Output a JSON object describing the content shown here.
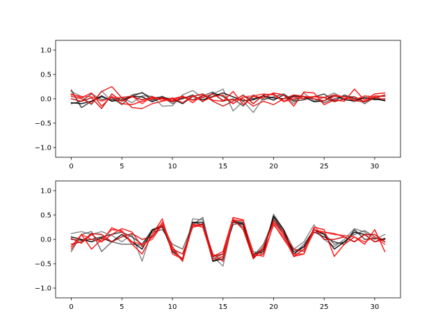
{
  "chart_data": [
    {
      "type": "line",
      "title": "",
      "xlabel": "",
      "ylabel": "",
      "xlim": [
        -1.55,
        32.55
      ],
      "ylim": [
        -1.2,
        1.2
      ],
      "xticks": [
        0,
        5,
        10,
        15,
        20,
        25,
        30
      ],
      "yticks": [
        -1.0,
        -0.5,
        0.0,
        0.5,
        1.0
      ],
      "xtick_labels": [
        "0",
        "5",
        "10",
        "15",
        "20",
        "25",
        "30"
      ],
      "ytick_labels": [
        "−1.0",
        "−0.5",
        "0.0",
        "0.5",
        "1.0"
      ],
      "grid": false,
      "x": [
        0,
        1,
        2,
        3,
        4,
        5,
        6,
        7,
        8,
        9,
        10,
        11,
        12,
        13,
        14,
        15,
        16,
        17,
        18,
        19,
        20,
        21,
        22,
        23,
        24,
        25,
        26,
        27,
        28,
        29,
        30,
        31
      ],
      "series": [
        {
          "color": "#808080",
          "values": [
            0.15,
            0.05,
            -0.12,
            0.16,
            -0.05,
            0.02,
            -0.08,
            0.06,
            0.05,
            -0.15,
            -0.14,
            0.08,
            0.17,
            0.02,
            0.1,
            0.2,
            -0.25,
            -0.05,
            -0.28,
            0.02,
            -0.02,
            0.08,
            -0.1,
            0.12,
            -0.05,
            0.03,
            0.12,
            0.0,
            -0.06,
            0.05,
            0.03,
            0.06
          ]
        },
        {
          "color": "#505050",
          "values": [
            -0.1,
            -0.05,
            0.1,
            -0.02,
            0.02,
            -0.12,
            0.08,
            0.12,
            0.02,
            0.04,
            -0.1,
            0.03,
            -0.02,
            0.06,
            0.14,
            -0.05,
            0.0,
            -0.15,
            0.08,
            -0.02,
            0.04,
            0.1,
            -0.03,
            0.05,
            0.0,
            -0.08,
            0.0,
            0.05,
            0.04,
            -0.1,
            0.03,
            -0.04
          ]
        },
        {
          "color": "#303030",
          "values": [
            0.18,
            -0.18,
            -0.05,
            0.04,
            -0.02,
            0.03,
            0.05,
            0.13,
            -0.03,
            0.05,
            -0.05,
            0.0,
            0.08,
            -0.06,
            0.12,
            0.05,
            -0.1,
            0.04,
            0.0,
            0.06,
            -0.03,
            0.08,
            -0.05,
            -0.02,
            0.04,
            0.1,
            -0.05,
            0.08,
            0.0,
            0.02,
            -0.02,
            0.0
          ]
        },
        {
          "color": "#000000",
          "values": [
            -0.08,
            -0.1,
            -0.05,
            0.06,
            -0.05,
            -0.02,
            0.05,
            0.04,
            -0.06,
            0.02,
            0.0,
            -0.1,
            0.05,
            -0.02,
            0.05,
            0.12,
            0.04,
            -0.04,
            -0.02,
            0.06,
            0.02,
            0.0,
            0.06,
            0.04,
            -0.06,
            -0.04,
            0.08,
            -0.02,
            -0.04,
            0.02,
            0.0,
            -0.04
          ]
        },
        {
          "color": "#ff0000",
          "values": [
            0.1,
            0.02,
            0.12,
            -0.15,
            0.05,
            -0.1,
            -0.12,
            -0.05,
            0.0,
            0.02,
            -0.04,
            0.06,
            -0.08,
            0.08,
            -0.03,
            -0.05,
            0.15,
            -0.12,
            0.05,
            0.02,
            0.12,
            0.08,
            -0.15,
            0.14,
            0.12,
            -0.12,
            -0.02,
            -0.05,
            0.2,
            -0.03,
            0.1,
            0.12
          ]
        },
        {
          "color": "#e01010",
          "values": [
            0.05,
            0.0,
            -0.1,
            0.15,
            0.25,
            0.02,
            -0.18,
            -0.2,
            -0.1,
            -0.05,
            0.0,
            0.05,
            -0.03,
            0.03,
            0.1,
            -0.03,
            -0.02,
            0.0,
            -0.15,
            -0.05,
            -0.12,
            0.0,
            0.08,
            0.05,
            0.0,
            -0.04,
            0.05,
            0.04,
            -0.04,
            -0.06,
            0.06,
            0.05
          ]
        },
        {
          "color": "#c80000",
          "values": [
            0.0,
            -0.05,
            0.02,
            -0.2,
            0.1,
            -0.05,
            0.04,
            -0.02,
            0.03,
            0.0,
            -0.06,
            0.02,
            0.05,
            0.1,
            -0.05,
            -0.15,
            -0.05,
            0.08,
            -0.1,
            0.08,
            0.1,
            -0.05,
            0.04,
            0.0,
            0.05,
            0.03,
            -0.06,
            0.0,
            0.04,
            -0.06,
            0.02,
            0.08
          ]
        },
        {
          "color": "#ff2020",
          "values": [
            0.08,
            0.05,
            0.04,
            -0.05,
            0.03,
            0.02,
            0.06,
            -0.1,
            0.05,
            -0.04,
            0.02,
            -0.08,
            0.06,
            -0.05,
            0.04,
            0.08,
            -0.1,
            0.04,
            0.06,
            0.1,
            0.08,
            -0.06,
            0.0,
            0.05,
            0.04,
            0.02,
            0.08,
            0.04,
            -0.02,
            0.06,
            0.04,
            -0.02
          ]
        }
      ]
    },
    {
      "type": "line",
      "title": "",
      "xlabel": "",
      "ylabel": "",
      "xlim": [
        -1.55,
        32.55
      ],
      "ylim": [
        -1.2,
        1.2
      ],
      "xticks": [
        0,
        5,
        10,
        15,
        20,
        25,
        30
      ],
      "yticks": [
        -1.0,
        -0.5,
        0.0,
        0.5,
        1.0
      ],
      "xtick_labels": [
        "0",
        "5",
        "10",
        "15",
        "20",
        "25",
        "30"
      ],
      "ytick_labels": [
        "−1.0",
        "−0.5",
        "0.0",
        "0.5",
        "1.0"
      ],
      "grid": false,
      "x": [
        0,
        1,
        2,
        3,
        4,
        5,
        6,
        7,
        8,
        9,
        10,
        11,
        12,
        13,
        14,
        15,
        16,
        17,
        18,
        19,
        20,
        21,
        22,
        23,
        24,
        25,
        26,
        27,
        28,
        29,
        30,
        31
      ],
      "series": [
        {
          "color": "#808080",
          "values": [
            0.12,
            0.16,
            0.1,
            0.16,
            0.08,
            -0.05,
            0.1,
            -0.45,
            0.2,
            0.3,
            -0.25,
            -0.4,
            0.42,
            0.4,
            -0.35,
            -0.55,
            0.4,
            0.35,
            -0.25,
            -0.3,
            0.52,
            0.2,
            -0.2,
            -0.05,
            0.3,
            0.0,
            -0.15,
            0.0,
            0.22,
            0.15,
            0.0,
            0.1
          ]
        },
        {
          "color": "#606060",
          "values": [
            -0.25,
            0.1,
            0.16,
            -0.25,
            -0.05,
            -0.1,
            -0.1,
            -0.12,
            0.15,
            0.2,
            -0.1,
            -0.2,
            0.3,
            0.45,
            -0.4,
            -0.3,
            0.3,
            0.35,
            -0.35,
            -0.1,
            0.4,
            0.1,
            -0.3,
            -0.1,
            0.2,
            0.12,
            -0.1,
            -0.05,
            0.1,
            0.18,
            0.05,
            -0.05
          ]
        },
        {
          "color": "#303030",
          "values": [
            0.0,
            -0.02,
            0.0,
            0.05,
            0.1,
            0.15,
            0.05,
            -0.1,
            0.2,
            0.25,
            -0.2,
            -0.42,
            0.35,
            0.3,
            -0.45,
            -0.35,
            0.35,
            0.3,
            -0.3,
            -0.2,
            0.45,
            0.15,
            -0.25,
            -0.15,
            0.15,
            0.05,
            -0.05,
            -0.1,
            0.2,
            0.0,
            0.02,
            0.0
          ]
        },
        {
          "color": "#000000",
          "values": [
            0.05,
            0.0,
            -0.05,
            0.03,
            -0.05,
            0.1,
            -0.05,
            -0.2,
            0.18,
            0.28,
            -0.25,
            -0.4,
            0.35,
            0.35,
            -0.45,
            -0.4,
            0.38,
            0.32,
            -0.32,
            -0.25,
            0.48,
            0.2,
            -0.3,
            -0.15,
            0.2,
            0.1,
            -0.2,
            -0.05,
            0.15,
            0.1,
            -0.05,
            0.02
          ]
        },
        {
          "color": "#ff0000",
          "values": [
            -0.15,
            0.1,
            -0.2,
            0.0,
            0.2,
            0.18,
            -0.1,
            -0.3,
            0.1,
            0.42,
            -0.3,
            -0.4,
            0.3,
            0.25,
            -0.35,
            -0.25,
            0.45,
            0.4,
            -0.35,
            -0.3,
            0.3,
            0.05,
            -0.35,
            -0.3,
            0.25,
            0.2,
            -0.35,
            -0.1,
            0.05,
            -0.1,
            0.2,
            -0.25
          ]
        },
        {
          "color": "#e01010",
          "values": [
            0.02,
            -0.08,
            0.1,
            -0.05,
            0.1,
            0.22,
            0.15,
            -0.15,
            0.05,
            0.35,
            -0.15,
            -0.45,
            0.28,
            0.32,
            -0.3,
            -0.45,
            0.42,
            0.2,
            -0.4,
            -0.15,
            0.35,
            0.1,
            -0.2,
            -0.25,
            0.15,
            0.15,
            0.12,
            0.05,
            -0.05,
            0.1,
            -0.05,
            0.0
          ]
        },
        {
          "color": "#c80000",
          "values": [
            -0.1,
            -0.05,
            0.12,
            0.1,
            -0.05,
            0.05,
            0.12,
            0.0,
            0.05,
            0.3,
            -0.2,
            -0.3,
            0.25,
            0.3,
            -0.35,
            -0.3,
            0.38,
            0.25,
            -0.38,
            -0.2,
            0.4,
            0.15,
            -0.35,
            -0.2,
            0.22,
            0.0,
            0.0,
            0.05,
            -0.05,
            0.1,
            0.1,
            -0.05
          ]
        },
        {
          "color": "#ff2020",
          "values": [
            -0.2,
            0.1,
            0.0,
            -0.05,
            0.24,
            0.15,
            -0.05,
            -0.1,
            0.0,
            0.3,
            -0.2,
            -0.45,
            0.32,
            0.25,
            -0.42,
            -0.35,
            0.4,
            0.38,
            -0.3,
            -0.35,
            0.32,
            0.0,
            -0.3,
            -0.3,
            0.2,
            0.15,
            0.1,
            0.08,
            0.05,
            -0.05,
            0.05,
            -0.1
          ]
        }
      ]
    }
  ]
}
